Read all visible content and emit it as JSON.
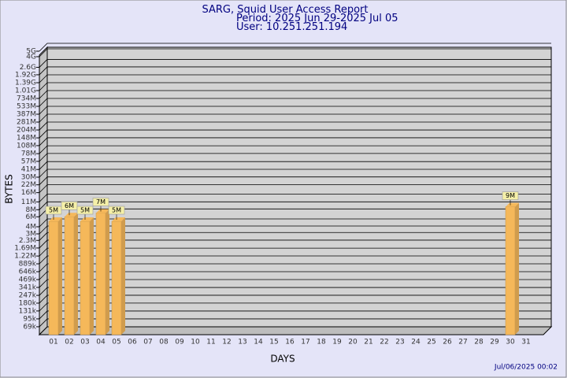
{
  "chart_data": {
    "type": "bar",
    "title": "SARG, Squid User Access Report",
    "subtitle": [
      "Period: 2025 Jun 29-2025 Jul 05",
      "User: 10.251.251.194"
    ],
    "y_label": "BYTES",
    "x_label": "DAYS",
    "footer": "Jul/06/2025 00:02",
    "log_scale": true,
    "grid": true,
    "color": "#f5b85a",
    "categories": [
      "01",
      "02",
      "03",
      "04",
      "05",
      "06",
      "07",
      "08",
      "09",
      "10",
      "11",
      "12",
      "13",
      "14",
      "15",
      "16",
      "17",
      "18",
      "19",
      "20",
      "21",
      "22",
      "23",
      "24",
      "25",
      "26",
      "27",
      "28",
      "29",
      "30",
      "31"
    ],
    "values": [
      5000000,
      6000000,
      5000000,
      7000000,
      5000000,
      null,
      null,
      null,
      null,
      null,
      null,
      null,
      null,
      null,
      null,
      null,
      null,
      null,
      null,
      null,
      null,
      null,
      null,
      null,
      null,
      null,
      null,
      null,
      null,
      9000000,
      null
    ],
    "value_labels": [
      "5M",
      "6M",
      "5M",
      "7M",
      "5M",
      null,
      null,
      null,
      null,
      null,
      null,
      null,
      null,
      null,
      null,
      null,
      null,
      null,
      null,
      null,
      null,
      null,
      null,
      null,
      null,
      null,
      null,
      null,
      null,
      "9M",
      null
    ],
    "ylim": [
      50000,
      5000000000
    ],
    "yticks": [
      {
        "value": 69000,
        "label": "69k"
      },
      {
        "value": 95000,
        "label": "95k"
      },
      {
        "value": 131000,
        "label": "131k"
      },
      {
        "value": 180000,
        "label": "180k"
      },
      {
        "value": 247000,
        "label": "247k"
      },
      {
        "value": 341000,
        "label": "341k"
      },
      {
        "value": 469000,
        "label": "469k"
      },
      {
        "value": 646000,
        "label": "646k"
      },
      {
        "value": 889000,
        "label": "889k"
      },
      {
        "value": 1220000,
        "label": "1.22M"
      },
      {
        "value": 1690000,
        "label": "1.69M"
      },
      {
        "value": 2300000,
        "label": "2.3M"
      },
      {
        "value": 3000000,
        "label": "3M"
      },
      {
        "value": 4000000,
        "label": "4M"
      },
      {
        "value": 6000000,
        "label": "6M"
      },
      {
        "value": 8000000,
        "label": "8M"
      },
      {
        "value": 11000000,
        "label": "11M"
      },
      {
        "value": 16000000,
        "label": "16M"
      },
      {
        "value": 22000000,
        "label": "22M"
      },
      {
        "value": 30000000,
        "label": "30M"
      },
      {
        "value": 41000000,
        "label": "41M"
      },
      {
        "value": 57000000,
        "label": "57M"
      },
      {
        "value": 78000000,
        "label": "78M"
      },
      {
        "value": 108000000,
        "label": "108M"
      },
      {
        "value": 148000000,
        "label": "148M"
      },
      {
        "value": 204000000,
        "label": "204M"
      },
      {
        "value": 281000000,
        "label": "281M"
      },
      {
        "value": 387000000,
        "label": "387M"
      },
      {
        "value": 533000000,
        "label": "533M"
      },
      {
        "value": 734000000,
        "label": "734M"
      },
      {
        "value": 1010000000,
        "label": "1.01G"
      },
      {
        "value": 1390000000,
        "label": "1.39G"
      },
      {
        "value": 1920000000,
        "label": "1.92G"
      },
      {
        "value": 2600000000,
        "label": "2.6G"
      },
      {
        "value": 4000000000,
        "label": "4G"
      },
      {
        "value": 5000000000,
        "label": "5G"
      }
    ]
  }
}
